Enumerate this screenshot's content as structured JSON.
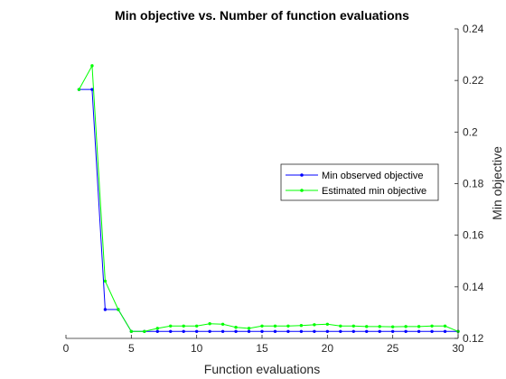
{
  "chart_data": {
    "type": "line",
    "title": "Min objective vs. Number of function evaluations",
    "xlabel": "Function evaluations",
    "ylabel": "Min objective",
    "xlim": [
      0,
      30
    ],
    "ylim": [
      0.12,
      0.24
    ],
    "xticks": [
      0,
      5,
      10,
      15,
      20,
      25,
      30
    ],
    "yticks": [
      0.12,
      0.14,
      0.16,
      0.18,
      0.2,
      0.22,
      0.24
    ],
    "xtick_labels": [
      "0",
      "5",
      "10",
      "15",
      "20",
      "25",
      "30"
    ],
    "ytick_labels": [
      "0.12",
      "0.14",
      "0.16",
      "0.18",
      "0.2",
      "0.22",
      "0.24"
    ],
    "y_axis_side": "right",
    "grid": false,
    "legend_position": "center-right",
    "series": [
      {
        "name": "Min observed objective",
        "color": "#0000ff",
        "x": [
          1,
          2,
          3,
          4,
          5,
          6,
          7,
          8,
          9,
          10,
          11,
          12,
          13,
          14,
          15,
          16,
          17,
          18,
          19,
          20,
          21,
          22,
          23,
          24,
          25,
          26,
          27,
          28,
          29,
          30
        ],
        "values": [
          0.2165,
          0.2165,
          0.1312,
          0.1312,
          0.1227,
          0.1227,
          0.1227,
          0.1227,
          0.1227,
          0.1227,
          0.1227,
          0.1227,
          0.1227,
          0.1227,
          0.1227,
          0.1227,
          0.1227,
          0.1227,
          0.1227,
          0.1227,
          0.1227,
          0.1227,
          0.1227,
          0.1227,
          0.1227,
          0.1227,
          0.1227,
          0.1227,
          0.1227,
          0.1227
        ]
      },
      {
        "name": "Estimated min objective",
        "color": "#00ff00",
        "x": [
          1,
          2,
          3,
          4,
          5,
          6,
          7,
          8,
          9,
          10,
          11,
          12,
          13,
          14,
          15,
          16,
          17,
          18,
          19,
          20,
          21,
          22,
          23,
          24,
          25,
          26,
          27,
          28,
          29,
          30
        ],
        "values": [
          0.2165,
          0.2257,
          0.1422,
          0.1312,
          0.1227,
          0.1227,
          0.1239,
          0.1248,
          0.1248,
          0.1248,
          0.1257,
          0.1255,
          0.1243,
          0.1239,
          0.1248,
          0.1248,
          0.1248,
          0.125,
          0.1253,
          0.1255,
          0.1248,
          0.1248,
          0.1246,
          0.1246,
          0.1245,
          0.1246,
          0.1246,
          0.1248,
          0.1248,
          0.1227
        ]
      }
    ]
  }
}
